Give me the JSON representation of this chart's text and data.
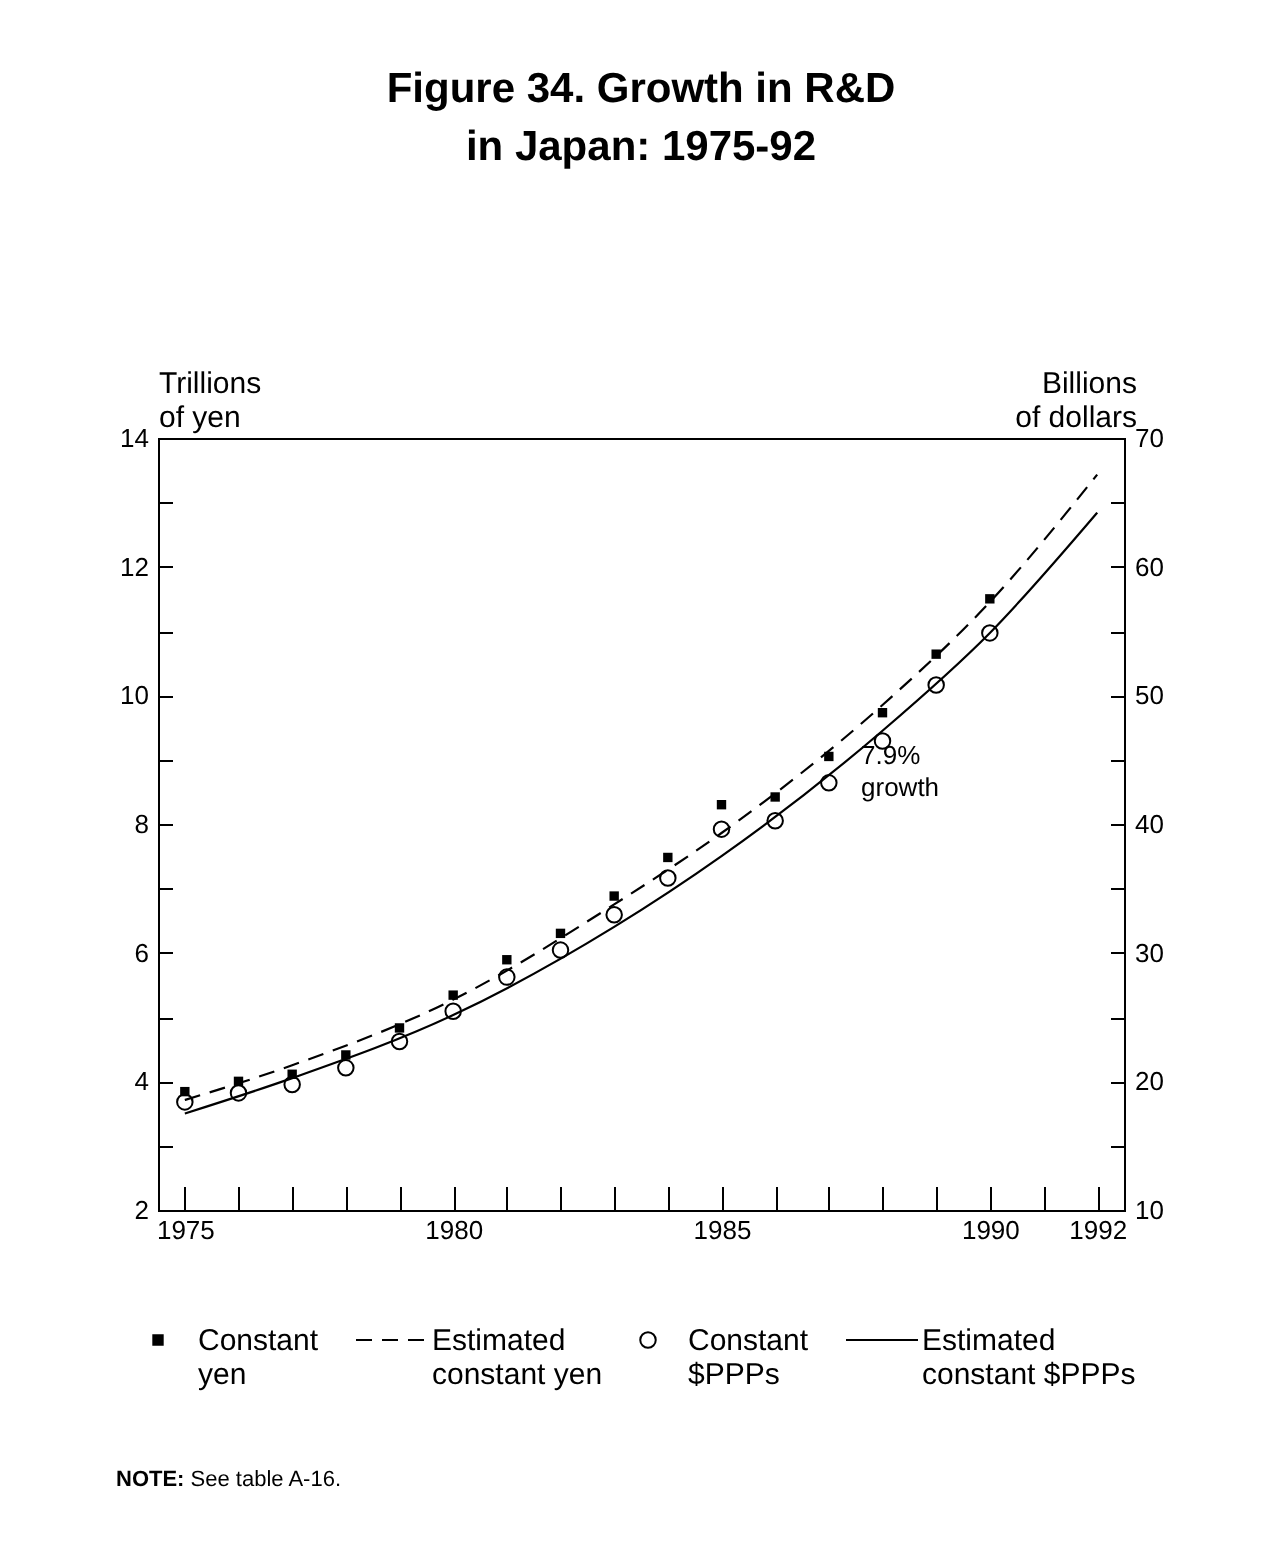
{
  "chart_data": {
    "type": "scatter",
    "title": "Figure 34.  Growth in R&D\nin Japan:  1975-92",
    "ylabel": "Trillions\nof yen",
    "y2label": "Billions\nof dollars",
    "xlim": [
      1974.5,
      1992.5
    ],
    "xticks": [
      1975,
      {
        "value": 1976,
        "label": null
      },
      {
        "value": 1977,
        "label": null
      },
      {
        "value": 1978,
        "label": null
      },
      {
        "value": 1979,
        "label": null
      },
      1980,
      {
        "value": 1981,
        "label": null
      },
      {
        "value": 1982,
        "label": null
      },
      {
        "value": 1983,
        "label": null
      },
      {
        "value": 1984,
        "label": null
      },
      1985,
      {
        "value": 1986,
        "label": null
      },
      {
        "value": 1987,
        "label": null
      },
      {
        "value": 1988,
        "label": null
      },
      {
        "value": 1989,
        "label": null
      },
      1990,
      {
        "value": 1991,
        "label": null
      },
      1992
    ],
    "ylim": [
      2,
      14
    ],
    "yticks": [
      2,
      {
        "value": 3,
        "label": null
      },
      4,
      {
        "value": 5,
        "label": null
      },
      6,
      {
        "value": 7,
        "label": null
      },
      8,
      {
        "value": 9,
        "label": null
      },
      10,
      {
        "value": 11,
        "label": null
      },
      12,
      {
        "value": 13,
        "label": null
      },
      14
    ],
    "y2lim": [
      10,
      70
    ],
    "y2ticks": [
      10,
      {
        "value": 15,
        "label": null
      },
      20,
      {
        "value": 25,
        "label": null
      },
      30,
      {
        "value": 35,
        "label": null
      },
      40,
      {
        "value": 45,
        "label": null
      },
      50,
      {
        "value": 55,
        "label": null
      },
      60,
      {
        "value": 65,
        "label": null
      },
      70
    ],
    "legend": "bottom",
    "grid": false,
    "series": [
      {
        "name": "Constant yen",
        "type": "scatter",
        "marker": "square",
        "color": "#000000",
        "x": [
          1975,
          1976,
          1977,
          1978,
          1979,
          1980,
          1981,
          1982,
          1983,
          1984,
          1985,
          1986,
          1987,
          1988,
          1989,
          1990
        ],
        "values": [
          3.84,
          4.0,
          4.11,
          4.41,
          4.83,
          5.34,
          5.89,
          6.3,
          6.88,
          7.48,
          8.3,
          8.42,
          9.05,
          9.73,
          10.64,
          11.5
        ]
      },
      {
        "name": "Estimated constant yen",
        "type": "line",
        "line_style": "dashed",
        "marker": "none",
        "color": "#000000",
        "x": [
          1975,
          1977,
          1980,
          1983,
          1985,
          1988,
          1990,
          1992
        ],
        "values": [
          3.71,
          4.25,
          5.27,
          6.75,
          7.86,
          9.85,
          11.45,
          13.43
        ]
      },
      {
        "name": "Constant $PPPs",
        "type": "scatter",
        "marker": "circle",
        "color": "#000000",
        "x": [
          1975,
          1976,
          1977,
          1978,
          1979,
          1980,
          1981,
          1982,
          1983,
          1984,
          1985,
          1986,
          1987,
          1988,
          1989,
          1990
        ],
        "values": [
          3.68,
          3.82,
          3.95,
          4.21,
          4.62,
          5.09,
          5.62,
          6.04,
          6.59,
          7.16,
          7.92,
          8.05,
          8.64,
          9.29,
          10.16,
          10.97
        ]
      },
      {
        "name": "Estimated constant $PPPs",
        "type": "line",
        "line_style": "solid",
        "marker": "none",
        "color": "#000000",
        "x": [
          1975,
          1977,
          1980,
          1983,
          1985,
          1988,
          1990,
          1992
        ],
        "values": [
          3.5,
          4.05,
          5.03,
          6.4,
          7.5,
          9.45,
          10.97,
          12.84
        ]
      }
    ],
    "annotations": [
      {
        "text": "7.9%\ngrowth",
        "x": 1987.6,
        "y": 9.25
      },
      "NOTE:  See table A-16."
    ]
  }
}
